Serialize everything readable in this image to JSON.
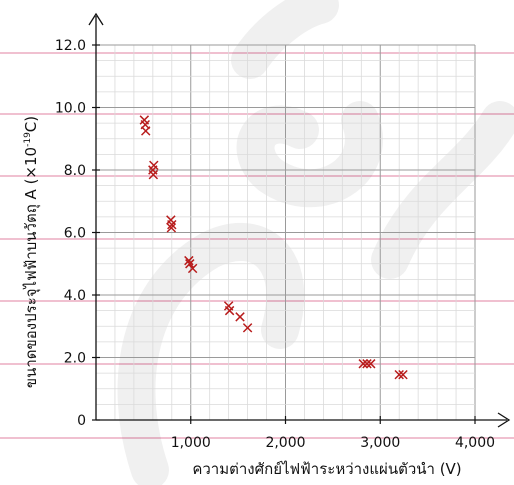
{
  "chart_data": {
    "type": "scatter",
    "xlabel": "ความต่างศักย์ไฟฟ้าระหว่างแผ่นตัวนำ (V)",
    "ylabel": {
      "main": "ขนาดของประจุไฟฟ้าบนวัตถุ A (×10",
      "exp": "-19",
      "close": "C)"
    },
    "xlim": [
      0,
      4000
    ],
    "ylim": [
      0,
      12
    ],
    "x_ticks": [
      {
        "value": 1000,
        "label": "1,000"
      },
      {
        "value": 2000,
        "label": "2,000"
      },
      {
        "value": 3000,
        "label": "3,000"
      },
      {
        "value": 4000,
        "label": "4,000"
      }
    ],
    "y_ticks": [
      {
        "value": 0,
        "label": "0"
      },
      {
        "value": 2,
        "label": "2.0"
      },
      {
        "value": 4,
        "label": "4.0"
      },
      {
        "value": 6,
        "label": "6.0"
      },
      {
        "value": 8,
        "label": "8.0"
      },
      {
        "value": 10,
        "label": "10.0"
      },
      {
        "value": 12,
        "label": "12.0"
      }
    ],
    "grid": true,
    "minor_grid": true,
    "marker": "x",
    "colors": {
      "marker": "#b81c1c",
      "major_grid": "#9a9a9a",
      "minor_grid": "#dadada",
      "axis": "#111111",
      "guide_lines": "#e89ab4"
    },
    "points": [
      {
        "x": 510,
        "y": 9.6
      },
      {
        "x": 520,
        "y": 9.45
      },
      {
        "x": 525,
        "y": 9.25
      },
      {
        "x": 610,
        "y": 8.15
      },
      {
        "x": 600,
        "y": 8.0
      },
      {
        "x": 605,
        "y": 7.85
      },
      {
        "x": 790,
        "y": 6.4
      },
      {
        "x": 800,
        "y": 6.25
      },
      {
        "x": 795,
        "y": 6.15
      },
      {
        "x": 980,
        "y": 5.1
      },
      {
        "x": 990,
        "y": 5.0
      },
      {
        "x": 1020,
        "y": 4.85
      },
      {
        "x": 1400,
        "y": 3.65
      },
      {
        "x": 1410,
        "y": 3.5
      },
      {
        "x": 1520,
        "y": 3.3
      },
      {
        "x": 1600,
        "y": 2.95
      },
      {
        "x": 2820,
        "y": 1.8
      },
      {
        "x": 2860,
        "y": 1.8
      },
      {
        "x": 2900,
        "y": 1.8
      },
      {
        "x": 3200,
        "y": 1.45
      },
      {
        "x": 3240,
        "y": 1.45
      }
    ]
  }
}
